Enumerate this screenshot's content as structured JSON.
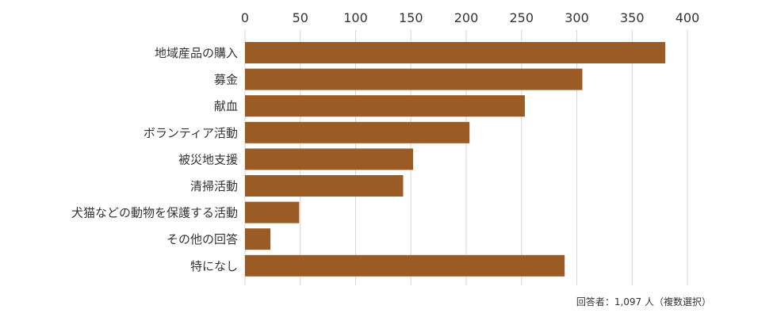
{
  "chart_data": {
    "type": "bar",
    "orientation": "horizontal",
    "categories": [
      "地域産品の購入",
      "募金",
      "献血",
      "ボランティア活動",
      "被災地支援",
      "清掃活動",
      "犬猫などの動物を保護する活動",
      "その他の回答",
      "特になし"
    ],
    "values": [
      380,
      305,
      253,
      203,
      152,
      143,
      49,
      23,
      289
    ],
    "xlim": [
      0,
      400
    ],
    "xticks": [
      0,
      50,
      100,
      150,
      200,
      250,
      300,
      350,
      400
    ],
    "x_axis_position": "top",
    "grid": true,
    "legend": "none",
    "bar_color": "#9a5b25",
    "grid_color": "#d6d6d6",
    "note": "回答者：1,097 人（複数選択）"
  }
}
